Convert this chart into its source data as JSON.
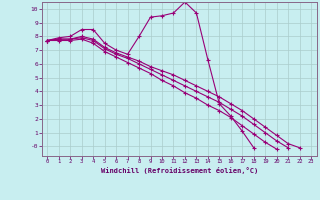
{
  "xlabel": "Windchill (Refroidissement éolien,°C)",
  "background_color": "#c8eef0",
  "line_color": "#990077",
  "grid_color": "#aacccc",
  "xlim": [
    -0.5,
    23.5
  ],
  "ylim": [
    -0.7,
    10.5
  ],
  "yticks": [
    0,
    1,
    2,
    3,
    4,
    5,
    6,
    7,
    8,
    9,
    10
  ],
  "ytick_labels": [
    "-0",
    "1",
    "2",
    "3",
    "4",
    "5",
    "6",
    "7",
    "8",
    "9",
    "10"
  ],
  "xticks": [
    0,
    1,
    2,
    3,
    4,
    5,
    6,
    7,
    8,
    9,
    10,
    11,
    12,
    13,
    14,
    15,
    16,
    17,
    18,
    19,
    20,
    21,
    22,
    23
  ],
  "lines": [
    {
      "x": [
        0,
        1,
        2,
        3,
        4,
        5,
        6,
        7,
        8,
        9,
        10,
        11,
        12,
        13,
        14,
        15,
        16,
        17,
        18
      ],
      "y": [
        7.7,
        7.9,
        8.0,
        8.5,
        8.5,
        7.5,
        7.0,
        6.7,
        8.0,
        9.4,
        9.5,
        9.7,
        10.5,
        9.7,
        6.3,
        3.1,
        2.2,
        1.1,
        -0.1
      ]
    },
    {
      "x": [
        0,
        1,
        2,
        3,
        4,
        5,
        6,
        7,
        8,
        9,
        10,
        11,
        12,
        13,
        14,
        15,
        16,
        17,
        18,
        19,
        20,
        21,
        22
      ],
      "y": [
        7.7,
        7.8,
        7.8,
        8.0,
        7.8,
        7.2,
        6.8,
        6.5,
        6.2,
        5.8,
        5.5,
        5.2,
        4.8,
        4.4,
        4.0,
        3.6,
        3.1,
        2.6,
        2.0,
        1.4,
        0.8,
        0.2,
        -0.1
      ]
    },
    {
      "x": [
        0,
        1,
        2,
        3,
        4,
        5,
        6,
        7,
        8,
        9,
        10,
        11,
        12,
        13,
        14,
        15,
        16,
        17,
        18,
        19,
        20,
        21
      ],
      "y": [
        7.7,
        7.8,
        7.8,
        7.9,
        7.7,
        7.1,
        6.7,
        6.4,
        6.0,
        5.6,
        5.2,
        4.8,
        4.4,
        4.0,
        3.6,
        3.2,
        2.7,
        2.2,
        1.6,
        1.0,
        0.4,
        -0.1
      ]
    },
    {
      "x": [
        0,
        1,
        2,
        3,
        4,
        5,
        6,
        7,
        8,
        9,
        10,
        11,
        12,
        13,
        14,
        15,
        16,
        17,
        18,
        19,
        20
      ],
      "y": [
        7.7,
        7.7,
        7.7,
        7.8,
        7.5,
        6.9,
        6.5,
        6.1,
        5.7,
        5.3,
        4.8,
        4.4,
        3.9,
        3.5,
        3.0,
        2.6,
        2.1,
        1.5,
        0.9,
        0.3,
        -0.2
      ]
    }
  ]
}
